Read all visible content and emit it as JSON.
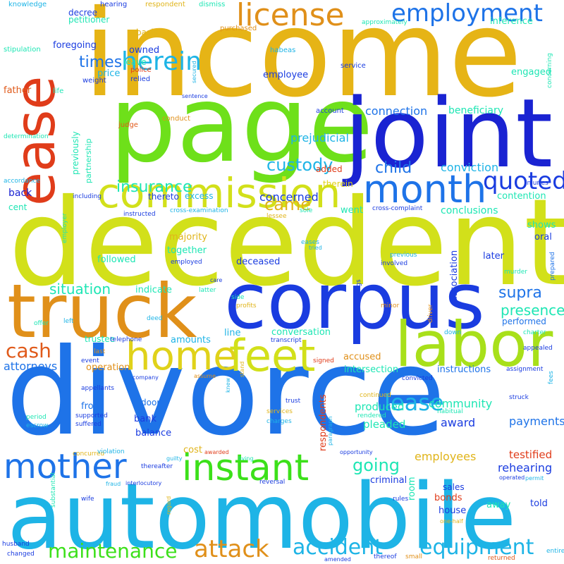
{
  "words": [
    {
      "text": "income",
      "color": "#e6b416"
    },
    {
      "text": "decedent",
      "color": "#d2e01a"
    },
    {
      "text": "divorce",
      "color": "#1e73e8"
    },
    {
      "text": "automobile",
      "color": "#1eb4e6"
    },
    {
      "text": "page",
      "color": "#6ee01a"
    },
    {
      "text": "joint",
      "color": "#1a23d2"
    },
    {
      "text": "corpus",
      "color": "#1a3ce0"
    },
    {
      "text": "truck",
      "color": "#e0901a"
    },
    {
      "text": "ease",
      "color": "#e03c1a"
    },
    {
      "text": "labor",
      "color": "#a8e01a"
    },
    {
      "text": "commission",
      "color": "#d2e01a"
    },
    {
      "text": "feet",
      "color": "#d2e01a"
    },
    {
      "text": "home",
      "color": "#e0d21a"
    },
    {
      "text": "month",
      "color": "#1e73e8"
    },
    {
      "text": "instant",
      "color": "#3ce01a"
    },
    {
      "text": "mother",
      "color": "#1e73e8"
    },
    {
      "text": "license",
      "color": "#e0901a"
    },
    {
      "text": "employment",
      "color": "#1e73e8"
    },
    {
      "text": "herein",
      "color": "#1eb4e6"
    },
    {
      "text": "quoted",
      "color": "#1a3ce0"
    },
    {
      "text": "cash",
      "color": "#e05a1a"
    },
    {
      "text": "lease",
      "color": "#1eb4e6"
    },
    {
      "text": "attack",
      "color": "#e0901a"
    },
    {
      "text": "accident",
      "color": "#1eb4e6"
    },
    {
      "text": "equipment",
      "color": "#1eb4e6"
    },
    {
      "text": "maintenance",
      "color": "#3ce01a"
    },
    {
      "text": "custody",
      "color": "#1eb4e6"
    },
    {
      "text": "insurance",
      "color": "#1ee6b4"
    },
    {
      "text": "child",
      "color": "#1e73e8"
    },
    {
      "text": "came",
      "color": "#e0b41a"
    },
    {
      "text": "times",
      "color": "#1e73e8"
    },
    {
      "text": "supra",
      "color": "#1e73e8"
    },
    {
      "text": "going",
      "color": "#1ee6b4"
    },
    {
      "text": "situation",
      "color": "#1ee6b4"
    },
    {
      "text": "presence",
      "color": "#1ee6b4"
    },
    {
      "text": "attorneys",
      "color": "#1e73e8"
    },
    {
      "text": "connection",
      "color": "#1e73e8"
    },
    {
      "text": "conviction",
      "color": "#1eb4e6"
    },
    {
      "text": "prejudicial",
      "color": "#1eb4e6"
    },
    {
      "text": "concerned",
      "color": "#1a3ce0"
    },
    {
      "text": "community",
      "color": "#1ee6b4"
    },
    {
      "text": "payments",
      "color": "#1e73e8"
    },
    {
      "text": "employees",
      "color": "#e0b41a"
    },
    {
      "text": "rehearing",
      "color": "#1a3ce0"
    },
    {
      "text": "testified",
      "color": "#e03c1a"
    },
    {
      "text": "award",
      "color": "#1a3ce0"
    },
    {
      "text": "pleaded",
      "color": "#1ee6b4"
    },
    {
      "text": "produced",
      "color": "#1ee6b4"
    },
    {
      "text": "conclusions",
      "color": "#1ee6b4"
    },
    {
      "text": "contention",
      "color": "#1ee6b4"
    },
    {
      "text": "beneficiary",
      "color": "#1ee6b4"
    },
    {
      "text": "back",
      "color": "#1a23d2"
    },
    {
      "text": "cent",
      "color": "#1ee6b4"
    },
    {
      "text": "majority",
      "color": "#e0b41a"
    },
    {
      "text": "together",
      "color": "#1ee6b4"
    },
    {
      "text": "followed",
      "color": "#1ee6b4"
    },
    {
      "text": "deceased",
      "color": "#1a3ce0"
    },
    {
      "text": "indicate",
      "color": "#1ee6b4"
    },
    {
      "text": "amounts",
      "color": "#1eb4e6"
    },
    {
      "text": "trustee",
      "color": "#1ee6b4"
    },
    {
      "text": "conversation",
      "color": "#1ee6b4"
    },
    {
      "text": "accused",
      "color": "#e0901a"
    },
    {
      "text": "intersection",
      "color": "#1ee6b4"
    },
    {
      "text": "instructions",
      "color": "#1e73e8"
    },
    {
      "text": "operation",
      "color": "#e0901a"
    },
    {
      "text": "front",
      "color": "#1e73e8"
    },
    {
      "text": "bank",
      "color": "#1a3ce0"
    },
    {
      "text": "balance",
      "color": "#1a3ce0"
    },
    {
      "text": "cost",
      "color": "#e0b41a"
    },
    {
      "text": "door",
      "color": "#1e73e8"
    },
    {
      "text": "sales",
      "color": "#1a3ce0"
    },
    {
      "text": "criminal",
      "color": "#1a3ce0"
    },
    {
      "text": "house",
      "color": "#1a3ce0"
    },
    {
      "text": "bonds",
      "color": "#e03c1a"
    },
    {
      "text": "away",
      "color": "#1ee6b4"
    },
    {
      "text": "told",
      "color": "#1a3ce0"
    },
    {
      "text": "went",
      "color": "#1ee6b4"
    },
    {
      "text": "line",
      "color": "#1eb4e6"
    },
    {
      "text": "performed",
      "color": "#1e73e8"
    },
    {
      "text": "shows",
      "color": "#1ee6b4"
    },
    {
      "text": "oral",
      "color": "#1a3ce0"
    },
    {
      "text": "later",
      "color": "#1a3ce0"
    },
    {
      "text": "father",
      "color": "#e05a1a"
    },
    {
      "text": "foregoing",
      "color": "#1a3ce0"
    },
    {
      "text": "owned",
      "color": "#1a3ce0"
    },
    {
      "text": "leave",
      "color": "#1ee6b4"
    },
    {
      "text": "price",
      "color": "#1eb4e6"
    },
    {
      "text": "employee",
      "color": "#1a3ce0"
    },
    {
      "text": "engaged",
      "color": "#1ee6b4"
    },
    {
      "text": "inference",
      "color": "#1ee6b4"
    },
    {
      "text": "petitioner",
      "color": "#1ee6b4"
    },
    {
      "text": "decree",
      "color": "#1a3ce0"
    },
    {
      "text": "basis",
      "color": "#e0b41a"
    },
    {
      "text": "added",
      "color": "#e03c1a"
    },
    {
      "text": "therein",
      "color": "#e0d21a"
    },
    {
      "text": "excess",
      "color": "#1eb4e6"
    },
    {
      "text": "thereto",
      "color": "#1a3ce0"
    },
    {
      "text": "previously",
      "color": "#1ee6b4"
    },
    {
      "text": "partnership",
      "color": "#1ee6b4"
    },
    {
      "text": "association",
      "color": "#1a3ce0"
    },
    {
      "text": "respondents",
      "color": "#e03c1a"
    },
    {
      "text": "room",
      "color": "#1ee6b4"
    },
    {
      "text": "weight",
      "color": "#1a3ce0"
    },
    {
      "text": "police",
      "color": "#e03c1a"
    },
    {
      "text": "relied",
      "color": "#1a3ce0"
    },
    {
      "text": "judge",
      "color": "#e05a1a"
    },
    {
      "text": "conduct",
      "color": "#e0901a"
    },
    {
      "text": "account",
      "color": "#1a3ce0"
    },
    {
      "text": "knowledge",
      "color": "#1eb4e6"
    },
    {
      "text": "hearing",
      "color": "#1a3ce0"
    },
    {
      "text": "respondent",
      "color": "#e0b41a"
    },
    {
      "text": "dismiss",
      "color": "#1ee6b4"
    },
    {
      "text": "purchased",
      "color": "#e0901a"
    },
    {
      "text": "approximately",
      "color": "#1ee6b4"
    },
    {
      "text": "stipulation",
      "color": "#1ee6b4"
    },
    {
      "text": "life",
      "color": "#1ee6b4"
    },
    {
      "text": "habeas",
      "color": "#1eb4e6"
    },
    {
      "text": "service",
      "color": "#1a3ce0"
    },
    {
      "text": "secured",
      "color": "#1eb4e6"
    },
    {
      "text": "sentence",
      "color": "#1a3ce0"
    },
    {
      "text": "concerning",
      "color": "#1ee6b4"
    },
    {
      "text": "determination",
      "color": "#1ee6b4"
    },
    {
      "text": "accordance",
      "color": "#1eb4e6"
    },
    {
      "text": "including",
      "color": "#1a3ce0"
    },
    {
      "text": "injuries",
      "color": "#1a3ce0"
    },
    {
      "text": "employer",
      "color": "#1ee6b4"
    },
    {
      "text": "instructed",
      "color": "#1a3ce0"
    },
    {
      "text": "cross-examination",
      "color": "#1eb4e6"
    },
    {
      "text": "cross-complaint",
      "color": "#1a3ce0"
    },
    {
      "text": "lessee",
      "color": "#e0b41a"
    },
    {
      "text": "sole",
      "color": "#1ee6b4"
    },
    {
      "text": "eases",
      "color": "#1eb4e6"
    },
    {
      "text": "tried",
      "color": "#1eb4e6"
    },
    {
      "text": "employed",
      "color": "#1a3ce0"
    },
    {
      "text": "involved",
      "color": "#1a3ce0"
    },
    {
      "text": "previous",
      "color": "#1eb4e6"
    },
    {
      "text": "prepared",
      "color": "#1e73e8"
    },
    {
      "text": "murder",
      "color": "#1ee6b4"
    },
    {
      "text": "care",
      "color": "#1a3ce0"
    },
    {
      "text": "latter",
      "color": "#1ee6b4"
    },
    {
      "text": "profits",
      "color": "#e0b41a"
    },
    {
      "text": "side",
      "color": "#1ee6b4"
    },
    {
      "text": "findings",
      "color": "#1a3ce0"
    },
    {
      "text": "minor",
      "color": "#e0901a"
    },
    {
      "text": "driver",
      "color": "#e0901a"
    },
    {
      "text": "charter",
      "color": "#1ee6b4"
    },
    {
      "text": "down",
      "color": "#1eb4e6"
    },
    {
      "text": "appealed",
      "color": "#1a3ce0"
    },
    {
      "text": "offer",
      "color": "#1ee6b4"
    },
    {
      "text": "left",
      "color": "#1eb4e6"
    },
    {
      "text": "deed",
      "color": "#1eb4e6"
    },
    {
      "text": "telephone",
      "color": "#1a3ce0"
    },
    {
      "text": "transcript",
      "color": "#1a3ce0"
    },
    {
      "text": "signed",
      "color": "#e03c1a"
    },
    {
      "text": "last",
      "color": "#e0901a"
    },
    {
      "text": "event",
      "color": "#1a3ce0"
    },
    {
      "text": "company",
      "color": "#1a3ce0"
    },
    {
      "text": "assume",
      "color": "#e0901a"
    },
    {
      "text": "stand",
      "color": "#e0b41a"
    },
    {
      "text": "knew",
      "color": "#1eb4e6"
    },
    {
      "text": "assignment",
      "color": "#1a3ce0"
    },
    {
      "text": "fees",
      "color": "#1eb4e6"
    },
    {
      "text": "appellants",
      "color": "#1a3ce0"
    },
    {
      "text": "convicted",
      "color": "#1a3ce0"
    },
    {
      "text": "continued",
      "color": "#e0b41a"
    },
    {
      "text": "rendered",
      "color": "#1ee6b4"
    },
    {
      "text": "services",
      "color": "#e0b41a"
    },
    {
      "text": "charges",
      "color": "#1eb4e6"
    },
    {
      "text": "trust",
      "color": "#1a3ce0"
    },
    {
      "text": "habitual",
      "color": "#1ee6b4"
    },
    {
      "text": "struck",
      "color": "#1a3ce0"
    },
    {
      "text": "period",
      "color": "#1ee6b4"
    },
    {
      "text": "escrow",
      "color": "#1eb4e6"
    },
    {
      "text": "supported",
      "color": "#1a3ce0"
    },
    {
      "text": "suffered",
      "color": "#1a3ce0"
    },
    {
      "text": "concurred",
      "color": "#e0b41a"
    },
    {
      "text": "violation",
      "color": "#1eb4e6"
    },
    {
      "text": "awarded",
      "color": "#e03c1a"
    },
    {
      "text": "guilty",
      "color": "#1eb4e6"
    },
    {
      "text": "living",
      "color": "#1ee6b4"
    },
    {
      "text": "paragraph",
      "color": "#1eb4e6"
    },
    {
      "text": "opportunity",
      "color": "#1a3ce0"
    },
    {
      "text": "thereafter",
      "color": "#1a3ce0"
    },
    {
      "text": "substantial",
      "color": "#1ee6b4"
    },
    {
      "text": "fraud",
      "color": "#1eb4e6"
    },
    {
      "text": "interlocutory",
      "color": "#1a3ce0"
    },
    {
      "text": "reversal",
      "color": "#1a3ce0"
    },
    {
      "text": "operated",
      "color": "#1a3ce0"
    },
    {
      "text": "permit",
      "color": "#1eb4e6"
    },
    {
      "text": "regard",
      "color": "#e0b41a"
    },
    {
      "text": "wife",
      "color": "#1a3ce0"
    },
    {
      "text": "rules",
      "color": "#1a3ce0"
    },
    {
      "text": "one-half",
      "color": "#e0b41a"
    },
    {
      "text": "husband",
      "color": "#1a3ce0"
    },
    {
      "text": "changed",
      "color": "#1a3ce0"
    },
    {
      "text": "amended",
      "color": "#1a3ce0"
    },
    {
      "text": "thereof",
      "color": "#1a3ce0"
    },
    {
      "text": "small",
      "color": "#e0901a"
    },
    {
      "text": "returned",
      "color": "#e05a1a"
    },
    {
      "text": "entire",
      "color": "#1eb4e6"
    }
  ]
}
